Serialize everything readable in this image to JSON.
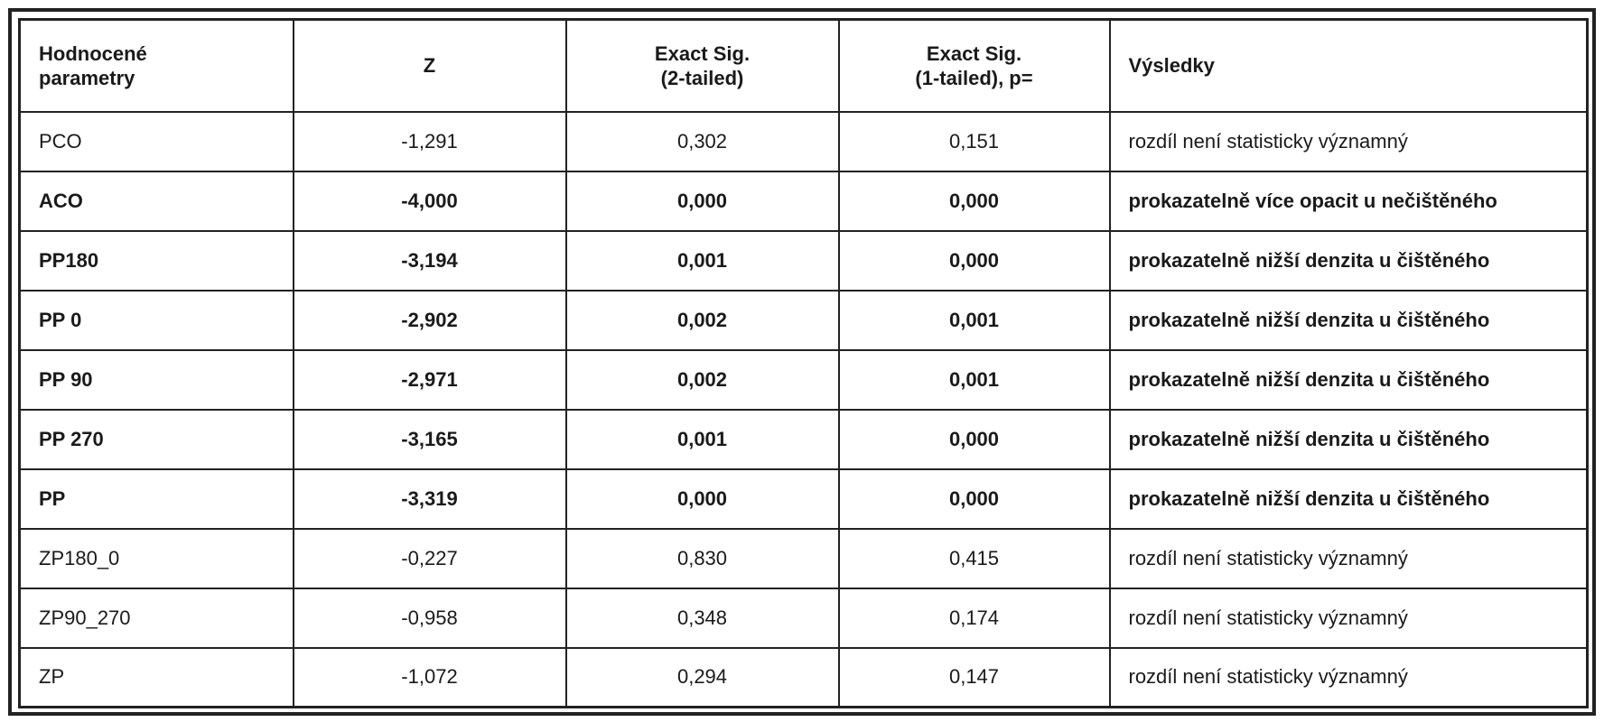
{
  "table": {
    "header": [
      [
        "Hodnocené",
        "parametry"
      ],
      [
        "Z"
      ],
      [
        "Exact Sig.",
        "(2-tailed)"
      ],
      [
        "Exact Sig.",
        "(1-tailed), p="
      ],
      [
        "Výsledky"
      ]
    ],
    "rows": [
      {
        "bold": false,
        "cells": [
          "PCO",
          "-1,291",
          "0,302",
          "0,151",
          "rozdíl není statisticky významný"
        ]
      },
      {
        "bold": true,
        "cells": [
          "ACO",
          "-4,000",
          "0,000",
          "0,000",
          "prokazatelně více opacit u nečištěného"
        ]
      },
      {
        "bold": true,
        "cells": [
          "PP180",
          "-3,194",
          "0,001",
          "0,000",
          "prokazatelně nižší denzita u čištěného"
        ]
      },
      {
        "bold": true,
        "cells": [
          "PP 0",
          "-2,902",
          "0,002",
          "0,001",
          "prokazatelně nižší denzita u čištěného"
        ]
      },
      {
        "bold": true,
        "cells": [
          "PP 90",
          "-2,971",
          "0,002",
          "0,001",
          "prokazatelně nižší denzita u čištěného"
        ]
      },
      {
        "bold": true,
        "cells": [
          "PP 270",
          "-3,165",
          "0,001",
          "0,000",
          "prokazatelně nižší denzita u čištěného"
        ]
      },
      {
        "bold": true,
        "cells": [
          "PP",
          "-3,319",
          "0,000",
          "0,000",
          "prokazatelně nižší denzita u čištěného"
        ]
      },
      {
        "bold": false,
        "cells": [
          "ZP180_0",
          "-0,227",
          "0,830",
          "0,415",
          "rozdíl není statisticky významný"
        ]
      },
      {
        "bold": false,
        "cells": [
          "ZP90_270",
          "-0,958",
          "0,348",
          "0,174",
          "rozdíl není statisticky významný"
        ]
      },
      {
        "bold": false,
        "cells": [
          "ZP",
          "-1,072",
          "0,294",
          "0,147",
          "rozdíl není statisticky významný"
        ]
      }
    ]
  }
}
